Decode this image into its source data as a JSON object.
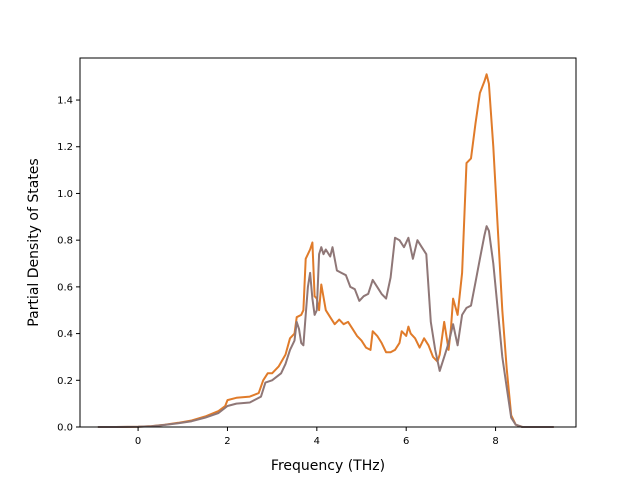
{
  "chart_data": {
    "type": "line",
    "title": "",
    "xlabel": "Frequency (THz)",
    "ylabel": "Partial Density of States",
    "xlim": [
      -1.3,
      9.8
    ],
    "ylim": [
      0.0,
      1.58
    ],
    "xticks": [
      0,
      2,
      4,
      6,
      8
    ],
    "yticks": [
      0.0,
      0.2,
      0.4,
      0.6,
      0.8,
      1.0,
      1.2,
      1.4
    ],
    "xtick_labels": [
      "0",
      "2",
      "4",
      "6",
      "8"
    ],
    "ytick_labels": [
      "0.0",
      "0.2",
      "0.4",
      "0.6",
      "0.8",
      "1.0",
      "1.2",
      "1.4"
    ],
    "grid": false,
    "legend": "none",
    "series": [
      {
        "color": "#e07b2a",
        "points": [
          [
            -0.9,
            0.0
          ],
          [
            -0.5,
            0.0
          ],
          [
            0.0,
            0.001
          ],
          [
            0.3,
            0.004
          ],
          [
            0.6,
            0.01
          ],
          [
            0.9,
            0.018
          ],
          [
            1.2,
            0.028
          ],
          [
            1.5,
            0.045
          ],
          [
            1.8,
            0.068
          ],
          [
            1.95,
            0.09
          ],
          [
            2.0,
            0.115
          ],
          [
            2.2,
            0.125
          ],
          [
            2.5,
            0.13
          ],
          [
            2.7,
            0.145
          ],
          [
            2.8,
            0.2
          ],
          [
            2.9,
            0.23
          ],
          [
            3.0,
            0.23
          ],
          [
            3.15,
            0.26
          ],
          [
            3.3,
            0.31
          ],
          [
            3.4,
            0.38
          ],
          [
            3.5,
            0.4
          ],
          [
            3.55,
            0.47
          ],
          [
            3.65,
            0.48
          ],
          [
            3.7,
            0.5
          ],
          [
            3.75,
            0.72
          ],
          [
            3.8,
            0.74
          ],
          [
            3.85,
            0.76
          ],
          [
            3.9,
            0.79
          ],
          [
            3.95,
            0.56
          ],
          [
            4.0,
            0.55
          ],
          [
            4.05,
            0.5
          ],
          [
            4.1,
            0.61
          ],
          [
            4.2,
            0.5
          ],
          [
            4.3,
            0.47
          ],
          [
            4.4,
            0.44
          ],
          [
            4.5,
            0.46
          ],
          [
            4.6,
            0.44
          ],
          [
            4.7,
            0.45
          ],
          [
            4.8,
            0.42
          ],
          [
            4.9,
            0.39
          ],
          [
            5.0,
            0.37
          ],
          [
            5.1,
            0.34
          ],
          [
            5.2,
            0.33
          ],
          [
            5.25,
            0.41
          ],
          [
            5.35,
            0.39
          ],
          [
            5.45,
            0.36
          ],
          [
            5.55,
            0.32
          ],
          [
            5.65,
            0.32
          ],
          [
            5.75,
            0.33
          ],
          [
            5.85,
            0.36
          ],
          [
            5.9,
            0.41
          ],
          [
            6.0,
            0.39
          ],
          [
            6.05,
            0.43
          ],
          [
            6.1,
            0.4
          ],
          [
            6.2,
            0.38
          ],
          [
            6.3,
            0.34
          ],
          [
            6.4,
            0.38
          ],
          [
            6.5,
            0.35
          ],
          [
            6.6,
            0.3
          ],
          [
            6.7,
            0.28
          ],
          [
            6.75,
            0.31
          ],
          [
            6.85,
            0.45
          ],
          [
            6.95,
            0.33
          ],
          [
            7.0,
            0.42
          ],
          [
            7.05,
            0.55
          ],
          [
            7.15,
            0.48
          ],
          [
            7.25,
            0.66
          ],
          [
            7.35,
            1.13
          ],
          [
            7.45,
            1.15
          ],
          [
            7.55,
            1.3
          ],
          [
            7.65,
            1.43
          ],
          [
            7.75,
            1.48
          ],
          [
            7.8,
            1.51
          ],
          [
            7.85,
            1.47
          ],
          [
            7.95,
            1.2
          ],
          [
            8.05,
            0.85
          ],
          [
            8.15,
            0.5
          ],
          [
            8.25,
            0.25
          ],
          [
            8.35,
            0.05
          ],
          [
            8.45,
            0.01
          ],
          [
            8.6,
            0.0
          ],
          [
            9.3,
            0.0
          ]
        ]
      },
      {
        "color": "#8f7777",
        "points": [
          [
            -0.9,
            0.0
          ],
          [
            -0.5,
            0.0
          ],
          [
            0.0,
            0.001
          ],
          [
            0.3,
            0.003
          ],
          [
            0.6,
            0.009
          ],
          [
            0.9,
            0.016
          ],
          [
            1.2,
            0.025
          ],
          [
            1.5,
            0.04
          ],
          [
            1.8,
            0.06
          ],
          [
            2.0,
            0.09
          ],
          [
            2.2,
            0.1
          ],
          [
            2.5,
            0.105
          ],
          [
            2.65,
            0.12
          ],
          [
            2.75,
            0.13
          ],
          [
            2.85,
            0.19
          ],
          [
            3.0,
            0.2
          ],
          [
            3.2,
            0.23
          ],
          [
            3.3,
            0.27
          ],
          [
            3.4,
            0.33
          ],
          [
            3.5,
            0.37
          ],
          [
            3.55,
            0.45
          ],
          [
            3.6,
            0.42
          ],
          [
            3.65,
            0.36
          ],
          [
            3.7,
            0.35
          ],
          [
            3.75,
            0.48
          ],
          [
            3.8,
            0.6
          ],
          [
            3.85,
            0.66
          ],
          [
            3.9,
            0.55
          ],
          [
            3.95,
            0.48
          ],
          [
            4.0,
            0.5
          ],
          [
            4.05,
            0.74
          ],
          [
            4.1,
            0.77
          ],
          [
            4.15,
            0.74
          ],
          [
            4.2,
            0.76
          ],
          [
            4.3,
            0.73
          ],
          [
            4.35,
            0.77
          ],
          [
            4.45,
            0.67
          ],
          [
            4.55,
            0.66
          ],
          [
            4.65,
            0.65
          ],
          [
            4.75,
            0.6
          ],
          [
            4.85,
            0.59
          ],
          [
            4.95,
            0.54
          ],
          [
            5.05,
            0.56
          ],
          [
            5.15,
            0.57
          ],
          [
            5.25,
            0.63
          ],
          [
            5.35,
            0.6
          ],
          [
            5.45,
            0.57
          ],
          [
            5.55,
            0.55
          ],
          [
            5.65,
            0.64
          ],
          [
            5.75,
            0.81
          ],
          [
            5.85,
            0.8
          ],
          [
            5.95,
            0.77
          ],
          [
            6.05,
            0.81
          ],
          [
            6.15,
            0.72
          ],
          [
            6.25,
            0.8
          ],
          [
            6.35,
            0.77
          ],
          [
            6.45,
            0.74
          ],
          [
            6.55,
            0.45
          ],
          [
            6.65,
            0.33
          ],
          [
            6.75,
            0.24
          ],
          [
            6.85,
            0.3
          ],
          [
            6.95,
            0.36
          ],
          [
            7.05,
            0.44
          ],
          [
            7.15,
            0.35
          ],
          [
            7.25,
            0.48
          ],
          [
            7.35,
            0.51
          ],
          [
            7.45,
            0.52
          ],
          [
            7.55,
            0.62
          ],
          [
            7.65,
            0.72
          ],
          [
            7.75,
            0.82
          ],
          [
            7.8,
            0.86
          ],
          [
            7.85,
            0.84
          ],
          [
            7.95,
            0.7
          ],
          [
            8.05,
            0.5
          ],
          [
            8.15,
            0.3
          ],
          [
            8.25,
            0.17
          ],
          [
            8.35,
            0.04
          ],
          [
            8.45,
            0.01
          ],
          [
            8.6,
            0.0
          ],
          [
            9.3,
            0.0
          ]
        ]
      }
    ]
  }
}
